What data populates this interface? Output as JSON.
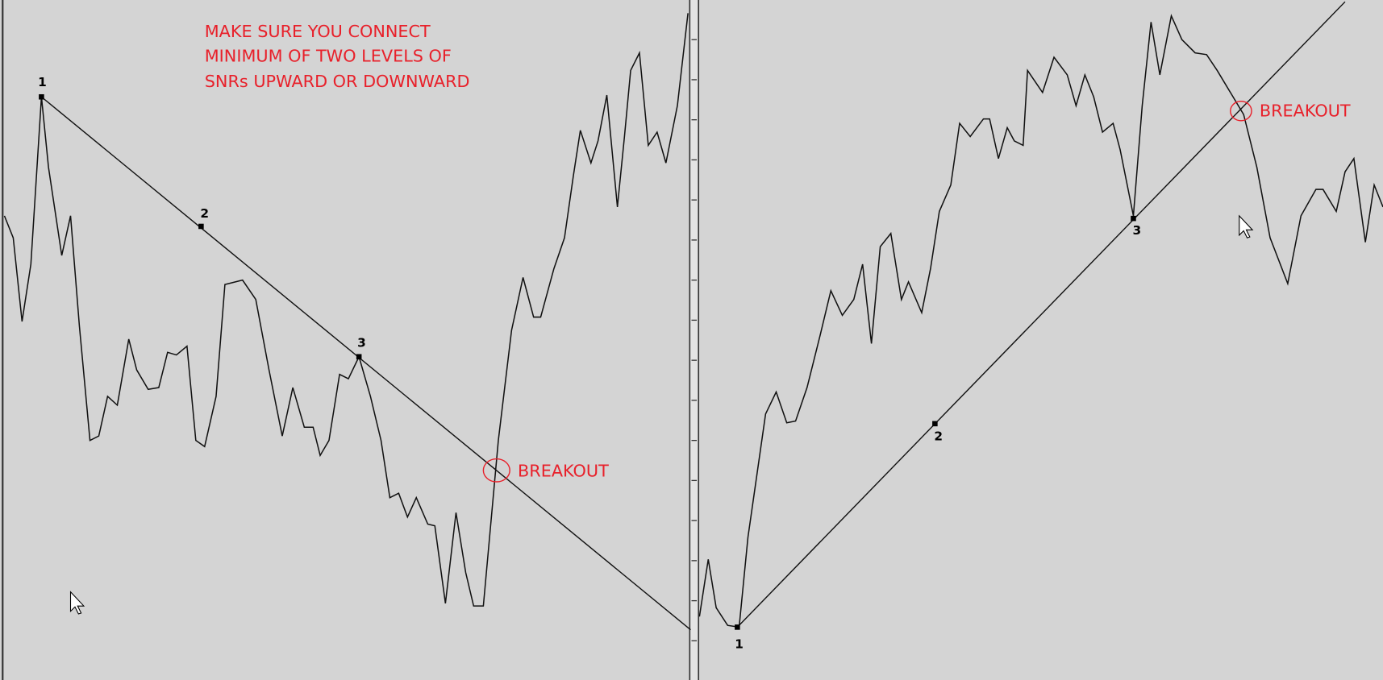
{
  "annotation": [
    "MAKE SURE YOU CONNECT",
    "MINIMUM OF TWO LEVELS OF",
    "SNRs UPWARD OR DOWNWARD"
  ],
  "left_chart": {
    "points": [
      "1",
      "2",
      "3"
    ],
    "breakout": "BREAKOUT"
  },
  "right_chart": {
    "points": [
      "1",
      "2",
      "3"
    ],
    "breakout": "BREAKOUT"
  }
}
